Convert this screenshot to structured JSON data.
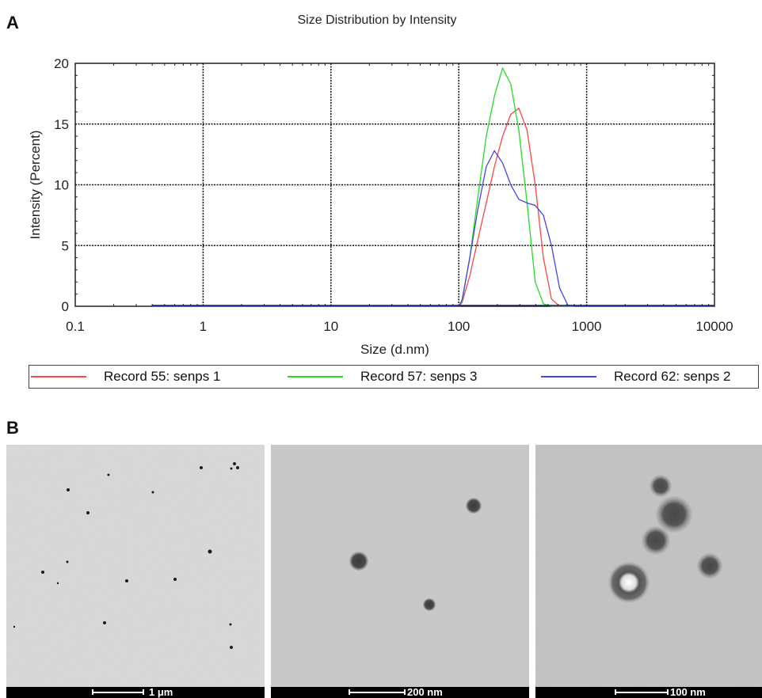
{
  "panels": {
    "a_label": "A",
    "b_label": "B"
  },
  "chart_data": {
    "type": "line",
    "title": "Size Distribution by Intensity",
    "xlabel": "Size (d.nm)",
    "ylabel": "Intensity (Percent)",
    "xscale": "log",
    "xlim": [
      0.1,
      10000
    ],
    "ylim": [
      0,
      20
    ],
    "xticks": [
      0.1,
      1,
      10,
      100,
      1000,
      10000
    ],
    "xtick_labels": [
      "0.1",
      "1",
      "10",
      "100",
      "1000",
      "10000"
    ],
    "yticks": [
      0,
      5,
      10,
      15,
      20
    ],
    "ytick_labels": [
      "0",
      "5",
      "10",
      "15",
      "20"
    ],
    "grid": true,
    "legend_position": "bottom",
    "series": [
      {
        "name": "Record 55: senps 1",
        "color": "#ff4444",
        "points": [
          [
            0.4,
            0
          ],
          [
            100,
            0
          ],
          [
            106,
            0.3
          ],
          [
            122,
            2.5
          ],
          [
            141,
            5.5
          ],
          [
            164,
            8.5
          ],
          [
            190,
            11.5
          ],
          [
            220,
            14
          ],
          [
            255,
            15.8
          ],
          [
            295,
            16.3
          ],
          [
            342,
            14.5
          ],
          [
            396,
            10
          ],
          [
            459,
            4
          ],
          [
            531,
            0.6
          ],
          [
            615,
            0
          ],
          [
            10000,
            0
          ]
        ]
      },
      {
        "name": "Record 57: senps 3",
        "color": "#22dd22",
        "points": [
          [
            0.4,
            0
          ],
          [
            100,
            0
          ],
          [
            106,
            0.4
          ],
          [
            122,
            4
          ],
          [
            141,
            9
          ],
          [
            164,
            14
          ],
          [
            190,
            17.3
          ],
          [
            220,
            19.6
          ],
          [
            255,
            18.3
          ],
          [
            295,
            14.5
          ],
          [
            342,
            8.5
          ],
          [
            396,
            2
          ],
          [
            459,
            0.2
          ],
          [
            531,
            0
          ],
          [
            10000,
            0
          ]
        ]
      },
      {
        "name": "Record 62: senps 2",
        "color": "#4444ee",
        "points": [
          [
            0.4,
            0
          ],
          [
            100,
            0
          ],
          [
            106,
            0.5
          ],
          [
            122,
            4
          ],
          [
            141,
            8
          ],
          [
            164,
            11.5
          ],
          [
            190,
            12.8
          ],
          [
            220,
            11.8
          ],
          [
            255,
            10
          ],
          [
            295,
            8.8
          ],
          [
            342,
            8.5
          ],
          [
            396,
            8.3
          ],
          [
            459,
            7.5
          ],
          [
            531,
            5
          ],
          [
            615,
            1.5
          ],
          [
            712,
            0.1
          ],
          [
            825,
            0
          ],
          [
            10000,
            0
          ]
        ]
      }
    ]
  },
  "tem_images": [
    {
      "scale": "1 μm"
    },
    {
      "scale": "200 nm"
    },
    {
      "scale": "100 nm"
    }
  ]
}
